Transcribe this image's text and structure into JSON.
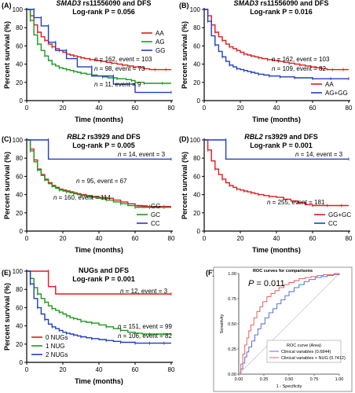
{
  "figure_width": 452,
  "figure_height": 500,
  "chart_data": [
    {
      "panel": "(A)",
      "type": "line",
      "title_italic": "SMAD3",
      "title_rest": "rs11556090 and DFS",
      "subtitle": "Log-rank P = 0.056",
      "xlabel": "Time (months)",
      "ylabel": "Percent survival (%)",
      "xlim": [
        0,
        80
      ],
      "ylim": [
        0,
        100
      ],
      "xticks": [
        0,
        20,
        40,
        60,
        80
      ],
      "yticks": [
        0,
        20,
        40,
        60,
        80,
        100
      ],
      "legend": "top-right",
      "series": [
        {
          "name": "AA",
          "color": "#e31a1c",
          "x": [
            0,
            2,
            4,
            6,
            8,
            10,
            12,
            14,
            16,
            18,
            20,
            22,
            24,
            26,
            28,
            30,
            32,
            35,
            38,
            41,
            44,
            47,
            50,
            53,
            56,
            59,
            62,
            65,
            68,
            71,
            74,
            77,
            80
          ],
          "y": [
            100,
            93,
            83,
            75,
            70,
            66,
            62,
            59,
            57,
            55,
            53,
            51,
            50,
            49,
            48,
            47,
            46,
            45,
            44,
            43,
            42,
            41,
            40,
            39,
            38,
            37,
            36,
            35,
            34,
            34,
            34,
            34,
            34
          ]
        },
        {
          "name": "AG",
          "color": "#1a9a1a",
          "x": [
            0,
            2,
            4,
            6,
            8,
            10,
            12,
            14,
            16,
            18,
            20,
            22,
            24,
            26,
            28,
            30,
            33,
            36,
            39,
            42,
            45,
            50,
            55,
            58,
            60,
            65,
            70,
            75,
            80
          ],
          "y": [
            100,
            88,
            72,
            62,
            55,
            49,
            44,
            40,
            38,
            36,
            35,
            34,
            33,
            32,
            31,
            30,
            29,
            28,
            27,
            26,
            25,
            24,
            23,
            22,
            20,
            19,
            19,
            19,
            19
          ]
        },
        {
          "name": "GG",
          "color": "#1f3fbf",
          "x": [
            0,
            4,
            4,
            8,
            8,
            12,
            12,
            16,
            16,
            22,
            22,
            28,
            28,
            36,
            36,
            48,
            48,
            60,
            60,
            80
          ],
          "y": [
            100,
            100,
            91,
            91,
            82,
            82,
            64,
            64,
            55,
            55,
            46,
            46,
            37,
            37,
            27,
            27,
            18,
            18,
            9,
            9
          ]
        }
      ],
      "annotations": [
        {
          "n": "162",
          "event": "103"
        },
        {
          "n": "98",
          "event": "73"
        },
        {
          "n": "11",
          "event": "9"
        }
      ]
    },
    {
      "panel": "(B)",
      "type": "line",
      "title_italic": "SMAD3",
      "title_rest": "rs11556090 and DFS",
      "subtitle": "Log-rank P = 0.016",
      "xlabel": "Time (months)",
      "ylabel": "Percent survival (%)",
      "xlim": [
        0,
        80
      ],
      "ylim": [
        0,
        100
      ],
      "xticks": [
        0,
        20,
        40,
        60,
        80
      ],
      "yticks": [
        0,
        20,
        40,
        60,
        80,
        100
      ],
      "legend": "bottom-right",
      "series": [
        {
          "name": "AA",
          "color": "#e31a1c",
          "x": [
            0,
            2,
            4,
            6,
            8,
            10,
            12,
            14,
            16,
            18,
            20,
            22,
            24,
            26,
            28,
            30,
            32,
            35,
            38,
            41,
            44,
            47,
            50,
            53,
            56,
            59,
            62,
            65,
            68,
            71,
            74,
            77,
            80
          ],
          "y": [
            100,
            93,
            83,
            75,
            70,
            66,
            62,
            59,
            57,
            55,
            53,
            51,
            50,
            49,
            48,
            47,
            46,
            45,
            44,
            43,
            42,
            41,
            40,
            39,
            38,
            37,
            36,
            35,
            34,
            34,
            34,
            34,
            34
          ]
        },
        {
          "name": "AG+GG",
          "color": "#1f3fbf",
          "x": [
            0,
            2,
            4,
            6,
            8,
            10,
            12,
            14,
            16,
            18,
            20,
            22,
            24,
            26,
            28,
            30,
            33,
            36,
            39,
            42,
            45,
            50,
            55,
            60,
            65,
            70,
            75,
            80
          ],
          "y": [
            100,
            87,
            71,
            61,
            54,
            48,
            43,
            39,
            37,
            35,
            34,
            33,
            32,
            31,
            30,
            29,
            28,
            27,
            27,
            26,
            26,
            25,
            25,
            24,
            24,
            24,
            24,
            24
          ]
        }
      ],
      "annotations": [
        {
          "n": "162",
          "event": "103"
        },
        {
          "n": "109",
          "event": "82"
        }
      ]
    },
    {
      "panel": "(C)",
      "type": "line",
      "title_italic": "RBL2",
      "title_rest": "rs3929 and DFS",
      "subtitle": "Log-rank P = 0.005",
      "xlabel": "Time (months)",
      "ylabel": "Percent survival (%)",
      "xlim": [
        0,
        80
      ],
      "ylim": [
        0,
        100
      ],
      "xticks": [
        0,
        20,
        40,
        60,
        80
      ],
      "yticks": [
        0,
        20,
        40,
        60,
        80,
        100
      ],
      "legend": "bottom-right",
      "series": [
        {
          "name": "GG",
          "color": "#e31a1c",
          "x": [
            0,
            2,
            4,
            6,
            8,
            10,
            12,
            14,
            16,
            18,
            20,
            22,
            24,
            26,
            28,
            30,
            33,
            36,
            40,
            44,
            48,
            52,
            56,
            60,
            64,
            68,
            72,
            76,
            80
          ],
          "y": [
            100,
            90,
            78,
            68,
            62,
            57,
            53,
            50,
            48,
            46,
            45,
            44,
            43,
            42,
            41,
            40,
            39,
            38,
            37,
            36,
            34,
            32,
            30,
            28,
            27,
            27,
            27,
            27,
            27
          ]
        },
        {
          "name": "GC",
          "color": "#1a9a1a",
          "x": [
            0,
            2,
            4,
            6,
            8,
            10,
            12,
            14,
            16,
            18,
            20,
            22,
            24,
            26,
            28,
            30,
            33,
            36,
            40,
            44,
            48,
            52,
            56,
            60,
            64,
            68,
            72,
            76,
            80
          ],
          "y": [
            100,
            88,
            76,
            67,
            61,
            56,
            52,
            49,
            47,
            45,
            44,
            43,
            42,
            41,
            40,
            39,
            38,
            37,
            36,
            34,
            32,
            30,
            28,
            26,
            26,
            26,
            26,
            26,
            26
          ]
        },
        {
          "name": "CC",
          "color": "#1f3fbf",
          "x": [
            0,
            12,
            12,
            80
          ],
          "y": [
            100,
            100,
            79,
            79
          ]
        }
      ],
      "annotations": [
        {
          "n": "14",
          "event": "3"
        },
        {
          "n": "95",
          "event": "67"
        },
        {
          "n": "160",
          "event": "114"
        }
      ]
    },
    {
      "panel": "(D)",
      "type": "line",
      "title_italic": "RBL2",
      "title_rest": "rs3929 and DFS",
      "subtitle": "Log-rank P = 0.001",
      "xlabel": "Time (months)",
      "ylabel": "Percent survival (%)",
      "xlim": [
        0,
        80
      ],
      "ylim": [
        0,
        100
      ],
      "xticks": [
        0,
        20,
        40,
        60,
        80
      ],
      "yticks": [
        0,
        20,
        40,
        60,
        80,
        100
      ],
      "legend": "bottom-right",
      "series": [
        {
          "name": "GG+GC",
          "color": "#e31a1c",
          "x": [
            0,
            2,
            4,
            6,
            8,
            10,
            12,
            14,
            16,
            18,
            20,
            22,
            24,
            26,
            28,
            30,
            33,
            36,
            40,
            44,
            48,
            52,
            56,
            60,
            64,
            68,
            72,
            76,
            80
          ],
          "y": [
            100,
            89,
            77,
            68,
            62,
            57,
            53,
            50,
            48,
            46,
            45,
            44,
            43,
            42,
            41,
            40,
            39,
            38,
            37,
            35,
            33,
            31,
            29,
            28,
            28,
            28,
            28,
            28,
            28
          ]
        },
        {
          "name": "CC",
          "color": "#1f3fbf",
          "x": [
            0,
            12,
            12,
            80
          ],
          "y": [
            100,
            100,
            79,
            79
          ]
        }
      ],
      "annotations": [
        {
          "n": "14",
          "event": "3"
        },
        {
          "n": "255",
          "event": "181"
        }
      ]
    },
    {
      "panel": "(E)",
      "type": "line",
      "title": "NUGs and DFS",
      "subtitle": "Log-rank P = 0.001",
      "xlabel": "Time (months)",
      "ylabel": "Percent survival (%)",
      "xlim": [
        0,
        80
      ],
      "ylim": [
        0,
        100
      ],
      "xticks": [
        0,
        20,
        40,
        60,
        80
      ],
      "yticks": [
        0,
        20,
        40,
        60,
        80,
        100
      ],
      "legend": "bottom-left",
      "series": [
        {
          "name": "0 NUGs",
          "color": "#e31a1c",
          "x": [
            0,
            12,
            12,
            16,
            16,
            80
          ],
          "y": [
            100,
            100,
            83,
            83,
            75,
            75
          ]
        },
        {
          "name": "1 NUG",
          "color": "#1a9a1a",
          "x": [
            0,
            2,
            4,
            6,
            8,
            10,
            12,
            14,
            16,
            18,
            20,
            22,
            24,
            26,
            28,
            30,
            33,
            36,
            40,
            44,
            48,
            52,
            56,
            60,
            64,
            68,
            72,
            76,
            80
          ],
          "y": [
            100,
            92,
            82,
            75,
            70,
            66,
            62,
            59,
            57,
            55,
            53,
            51,
            49,
            48,
            47,
            45,
            44,
            43,
            41,
            39,
            37,
            35,
            33,
            32,
            31,
            31,
            31,
            31,
            31
          ]
        },
        {
          "name": "2 NUGs",
          "color": "#1f3fbf",
          "x": [
            0,
            2,
            4,
            6,
            8,
            10,
            12,
            14,
            16,
            18,
            20,
            22,
            24,
            26,
            28,
            30,
            33,
            36,
            40,
            44,
            48,
            52,
            56,
            60,
            64,
            68,
            72,
            76,
            80
          ],
          "y": [
            100,
            86,
            70,
            60,
            53,
            47,
            42,
            39,
            37,
            35,
            33,
            32,
            31,
            30,
            29,
            28,
            27,
            26,
            25,
            24,
            23,
            22,
            22,
            21,
            21,
            21,
            21,
            21,
            21
          ]
        }
      ],
      "annotations": [
        {
          "n": "12",
          "event": "3"
        },
        {
          "n": "151",
          "event": "99"
        },
        {
          "n": "106",
          "event": "82"
        }
      ]
    },
    {
      "panel": "(F)",
      "type": "line",
      "title": "ROC curves for comparisons",
      "p_label": "P",
      "p_value": "= 0.011",
      "xlabel": "1 - Specificity",
      "ylabel": "Sensitivity",
      "xlim": [
        0,
        1
      ],
      "ylim": [
        0,
        1
      ],
      "xticks": [
        "0.00",
        "0.25",
        "0.50",
        "0.75",
        "1.00"
      ],
      "yticks": [
        "0.00",
        "0.25",
        "0.50",
        "0.75",
        "1.00"
      ],
      "legend": "bottom-right",
      "legend_title": "ROC curve (Area)",
      "series": [
        {
          "name": "Clinical variables",
          "area": "(0.6844)",
          "color": "#4a5fd0",
          "x": [
            0,
            0.02,
            0.04,
            0.06,
            0.08,
            0.1,
            0.13,
            0.16,
            0.19,
            0.22,
            0.26,
            0.3,
            0.34,
            0.38,
            0.42,
            0.46,
            0.5,
            0.55,
            0.6,
            0.65,
            0.7,
            0.76,
            0.82,
            0.88,
            0.94,
            1.0
          ],
          "y": [
            0,
            0.05,
            0.11,
            0.17,
            0.22,
            0.27,
            0.33,
            0.39,
            0.45,
            0.5,
            0.56,
            0.61,
            0.65,
            0.7,
            0.74,
            0.78,
            0.82,
            0.86,
            0.89,
            0.92,
            0.94,
            0.96,
            0.97,
            0.98,
            0.99,
            1.0
          ]
        },
        {
          "name": "Clinical variables + NUG",
          "area": "(0.7412)",
          "color": "#e05050",
          "x": [
            0,
            0.02,
            0.04,
            0.06,
            0.08,
            0.1,
            0.12,
            0.15,
            0.18,
            0.21,
            0.24,
            0.28,
            0.32,
            0.36,
            0.4,
            0.45,
            0.5,
            0.55,
            0.6,
            0.66,
            0.72,
            0.78,
            0.84,
            0.9,
            0.95,
            1.0
          ],
          "y": [
            0,
            0.1,
            0.2,
            0.29,
            0.36,
            0.43,
            0.49,
            0.56,
            0.62,
            0.67,
            0.72,
            0.77,
            0.8,
            0.83,
            0.86,
            0.89,
            0.91,
            0.93,
            0.95,
            0.96,
            0.97,
            0.98,
            0.99,
            0.99,
            1.0,
            1.0
          ]
        }
      ]
    }
  ]
}
